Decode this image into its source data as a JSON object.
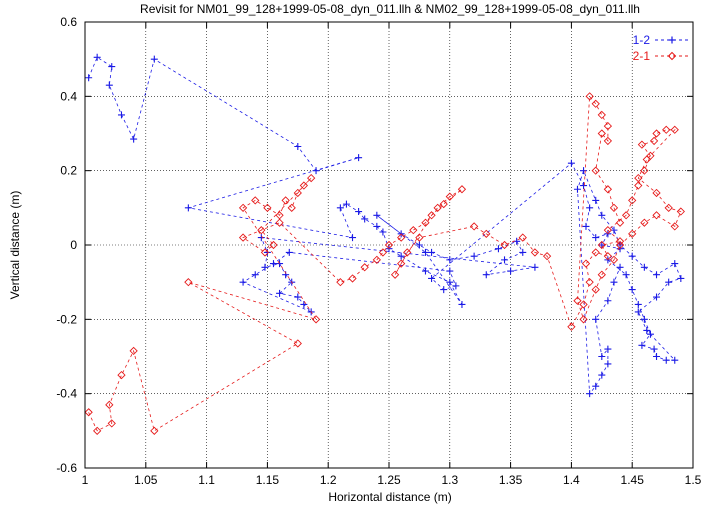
{
  "chart_data": {
    "type": "scatter",
    "title": "Revisit for NM01_99_128+1999-05-08_dyn_011.llh & NM02_99_128+1999-05-08_dyn_011.llh",
    "xlabel": "Horizontal distance (m)",
    "ylabel": "Vertical distance (m)",
    "xlim": [
      1.0,
      1.5
    ],
    "ylim": [
      -0.6,
      0.6
    ],
    "xticks": [
      1.0,
      1.05,
      1.1,
      1.15,
      1.2,
      1.25,
      1.3,
      1.35,
      1.4,
      1.45,
      1.5
    ],
    "xtick_labels": [
      "1",
      "1.05",
      "1.1",
      "1.15",
      "1.2",
      "1.25",
      "1.3",
      "1.35",
      "1.4",
      "1.45",
      "1.5"
    ],
    "yticks": [
      -0.6,
      -0.4,
      -0.2,
      0,
      0.2,
      0.4,
      0.6
    ],
    "ytick_labels": [
      "-0.6",
      "-0.4",
      "-0.2",
      "0",
      "0.2",
      "0.4",
      "0.6"
    ],
    "grid": true,
    "legend_position": "top-right",
    "series": [
      {
        "name": "1-2",
        "color": "#1a1ae6",
        "marker": "plus",
        "line": "dashed",
        "points": [
          [
            1.003,
            0.45
          ],
          [
            1.01,
            0.505
          ],
          [
            1.022,
            0.48
          ],
          [
            1.02,
            0.43
          ],
          [
            1.03,
            0.35
          ],
          [
            1.04,
            0.285
          ],
          [
            1.057,
            0.5
          ],
          [
            1.175,
            0.265
          ],
          [
            1.19,
            0.2
          ],
          [
            1.225,
            0.235
          ],
          [
            1.085,
            0.1
          ],
          [
            1.22,
            0.02
          ],
          [
            1.21,
            0.1
          ],
          [
            1.215,
            0.11
          ],
          [
            1.225,
            0.09
          ],
          [
            1.23,
            0.07
          ],
          [
            1.24,
            0.05
          ],
          [
            1.245,
            0.035
          ],
          [
            1.25,
            -0.01
          ],
          [
            1.26,
            -0.03
          ],
          [
            1.28,
            -0.07
          ],
          [
            1.3,
            -0.1
          ],
          [
            1.31,
            -0.16
          ],
          [
            1.28,
            -0.02
          ],
          [
            1.24,
            0.08
          ],
          [
            1.26,
            0.03
          ],
          [
            1.275,
            0.0
          ],
          [
            1.285,
            -0.02
          ],
          [
            1.3,
            -0.04
          ],
          [
            1.32,
            -0.03
          ],
          [
            1.34,
            -0.01
          ],
          [
            1.355,
            0.01
          ],
          [
            1.36,
            -0.02
          ],
          [
            1.345,
            -0.04
          ],
          [
            1.33,
            -0.08
          ],
          [
            1.35,
            -0.07
          ],
          [
            1.37,
            -0.06
          ],
          [
            1.145,
            0.02
          ],
          [
            1.15,
            -0.02
          ],
          [
            1.148,
            -0.06
          ],
          [
            1.16,
            -0.05
          ],
          [
            1.165,
            -0.08
          ],
          [
            1.17,
            -0.1
          ],
          [
            1.16,
            -0.13
          ],
          [
            1.175,
            -0.14
          ],
          [
            1.18,
            -0.16
          ],
          [
            1.186,
            -0.18
          ],
          [
            1.13,
            -0.1
          ],
          [
            1.14,
            -0.08
          ],
          [
            1.155,
            -0.05
          ],
          [
            1.168,
            -0.02
          ],
          [
            1.3,
            -0.07
          ],
          [
            1.305,
            -0.11
          ],
          [
            1.295,
            -0.12
          ],
          [
            1.285,
            -0.09
          ],
          [
            1.4,
            0.22
          ],
          [
            1.41,
            0.16
          ],
          [
            1.415,
            0.1
          ],
          [
            1.412,
            0.05
          ],
          [
            1.42,
            0.02
          ],
          [
            1.43,
            0.03
          ],
          [
            1.425,
            0.0
          ],
          [
            1.44,
            -0.01
          ],
          [
            1.43,
            -0.04
          ],
          [
            1.445,
            -0.08
          ],
          [
            1.45,
            -0.12
          ],
          [
            1.455,
            -0.16
          ],
          [
            1.46,
            -0.2
          ],
          [
            1.465,
            -0.24
          ],
          [
            1.458,
            -0.27
          ],
          [
            1.468,
            -0.28
          ],
          [
            1.47,
            -0.3
          ],
          [
            1.478,
            -0.31
          ],
          [
            1.485,
            -0.31
          ],
          [
            1.462,
            -0.23
          ],
          [
            1.455,
            -0.18
          ],
          [
            1.47,
            -0.14
          ],
          [
            1.48,
            -0.1
          ],
          [
            1.49,
            -0.09
          ],
          [
            1.485,
            -0.05
          ],
          [
            1.47,
            -0.08
          ],
          [
            1.46,
            -0.06
          ],
          [
            1.45,
            -0.03
          ],
          [
            1.44,
            0.0
          ],
          [
            1.435,
            0.04
          ],
          [
            1.425,
            0.08
          ],
          [
            1.42,
            0.12
          ],
          [
            1.41,
            0.2
          ],
          [
            1.405,
            0.15
          ],
          [
            1.415,
            -0.4
          ],
          [
            1.42,
            -0.38
          ],
          [
            1.425,
            -0.35
          ],
          [
            1.43,
            -0.32
          ],
          [
            1.43,
            -0.28
          ],
          [
            1.425,
            -0.3
          ],
          [
            1.42,
            -0.2
          ],
          [
            1.43,
            -0.15
          ],
          [
            1.435,
            -0.1
          ],
          [
            1.44,
            -0.06
          ]
        ]
      },
      {
        "name": "2-1",
        "color": "#e61a1a",
        "marker": "diamond",
        "line": "dashed",
        "points": [
          [
            1.003,
            -0.45
          ],
          [
            1.01,
            -0.5
          ],
          [
            1.022,
            -0.48
          ],
          [
            1.02,
            -0.43
          ],
          [
            1.03,
            -0.35
          ],
          [
            1.04,
            -0.285
          ],
          [
            1.057,
            -0.5
          ],
          [
            1.175,
            -0.265
          ],
          [
            1.085,
            -0.1
          ],
          [
            1.19,
            -0.2
          ],
          [
            1.13,
            0.1
          ],
          [
            1.14,
            0.12
          ],
          [
            1.15,
            0.1
          ],
          [
            1.16,
            0.08
          ],
          [
            1.165,
            0.12
          ],
          [
            1.17,
            0.1
          ],
          [
            1.175,
            0.14
          ],
          [
            1.18,
            0.16
          ],
          [
            1.186,
            0.18
          ],
          [
            1.145,
            0.04
          ],
          [
            1.155,
            0.0
          ],
          [
            1.148,
            -0.02
          ],
          [
            1.13,
            0.02
          ],
          [
            1.16,
            0.06
          ],
          [
            1.21,
            -0.1
          ],
          [
            1.22,
            -0.09
          ],
          [
            1.23,
            -0.06
          ],
          [
            1.24,
            -0.04
          ],
          [
            1.245,
            -0.02
          ],
          [
            1.25,
            0.0
          ],
          [
            1.26,
            0.02
          ],
          [
            1.27,
            0.04
          ],
          [
            1.28,
            0.06
          ],
          [
            1.29,
            0.1
          ],
          [
            1.3,
            0.13
          ],
          [
            1.31,
            0.15
          ],
          [
            1.295,
            0.11
          ],
          [
            1.285,
            0.08
          ],
          [
            1.26,
            -0.05
          ],
          [
            1.255,
            -0.08
          ],
          [
            1.265,
            -0.02
          ],
          [
            1.275,
            0.02
          ],
          [
            1.32,
            0.05
          ],
          [
            1.33,
            0.03
          ],
          [
            1.345,
            0.0
          ],
          [
            1.36,
            0.02
          ],
          [
            1.37,
            -0.02
          ],
          [
            1.38,
            -0.03
          ],
          [
            1.4,
            -0.22
          ],
          [
            1.41,
            -0.16
          ],
          [
            1.415,
            -0.1
          ],
          [
            1.412,
            -0.05
          ],
          [
            1.42,
            -0.02
          ],
          [
            1.43,
            -0.03
          ],
          [
            1.425,
            0.0
          ],
          [
            1.44,
            0.01
          ],
          [
            1.43,
            0.04
          ],
          [
            1.445,
            0.08
          ],
          [
            1.45,
            0.12
          ],
          [
            1.455,
            0.16
          ],
          [
            1.46,
            0.2
          ],
          [
            1.465,
            0.24
          ],
          [
            1.458,
            0.27
          ],
          [
            1.468,
            0.28
          ],
          [
            1.47,
            0.3
          ],
          [
            1.478,
            0.31
          ],
          [
            1.485,
            0.31
          ],
          [
            1.462,
            0.23
          ],
          [
            1.455,
            0.18
          ],
          [
            1.47,
            0.14
          ],
          [
            1.48,
            0.1
          ],
          [
            1.49,
            0.09
          ],
          [
            1.485,
            0.05
          ],
          [
            1.47,
            0.08
          ],
          [
            1.46,
            0.06
          ],
          [
            1.45,
            0.03
          ],
          [
            1.44,
            0.0
          ],
          [
            1.435,
            -0.04
          ],
          [
            1.425,
            -0.08
          ],
          [
            1.42,
            -0.12
          ],
          [
            1.41,
            -0.2
          ],
          [
            1.405,
            -0.15
          ],
          [
            1.415,
            0.4
          ],
          [
            1.42,
            0.38
          ],
          [
            1.425,
            0.35
          ],
          [
            1.43,
            0.32
          ],
          [
            1.43,
            0.28
          ],
          [
            1.425,
            0.3
          ],
          [
            1.42,
            0.2
          ],
          [
            1.43,
            0.15
          ],
          [
            1.435,
            0.1
          ],
          [
            1.44,
            0.06
          ]
        ]
      }
    ]
  }
}
